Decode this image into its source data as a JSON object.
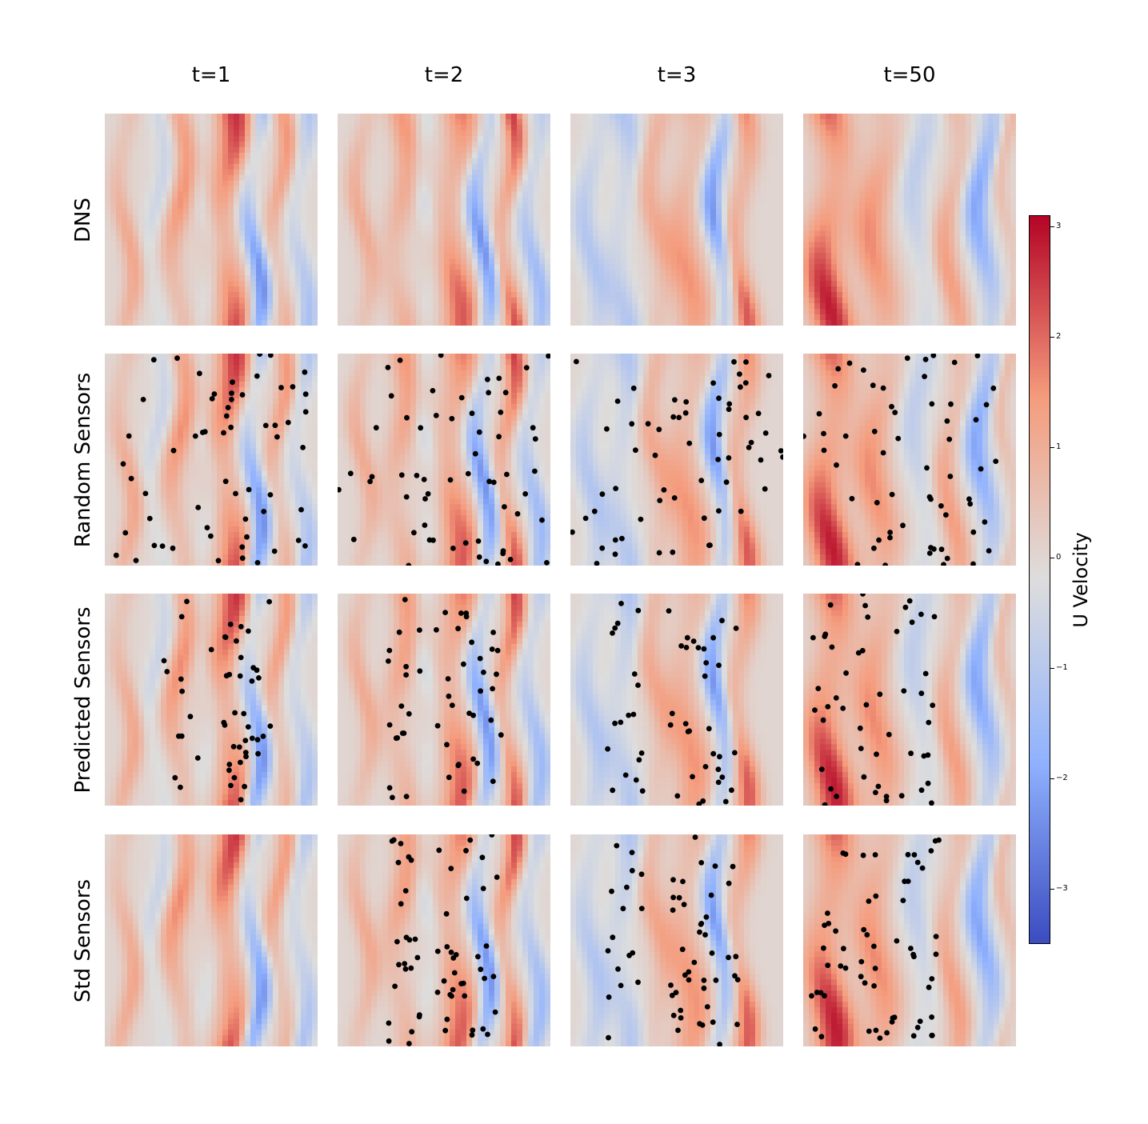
{
  "chart_data": {
    "type": "heatmap",
    "title": "",
    "columns": [
      "t=1",
      "t=2",
      "t=3",
      "t=50"
    ],
    "rows": [
      "DNS",
      "Random Sensors",
      "Predicted Sensors",
      "Std Sensors"
    ],
    "colormap": "coolwarm",
    "colorbar": {
      "label": "U Velocity",
      "range": [
        -3.5,
        3.1
      ],
      "ticks": [
        3,
        2,
        1,
        0,
        -1,
        -2,
        -3
      ],
      "tick_labels": [
        "3",
        "2",
        "1",
        "0",
        "−1",
        "−2",
        "−3"
      ]
    },
    "sensor_marker_color": "#000000",
    "sensor_counts": {
      "Random Sensors": [
        60,
        60,
        60,
        60
      ],
      "Predicted Sensors": [
        50,
        50,
        50,
        50
      ],
      "Std Sensors": [
        0,
        60,
        60,
        60
      ]
    }
  }
}
